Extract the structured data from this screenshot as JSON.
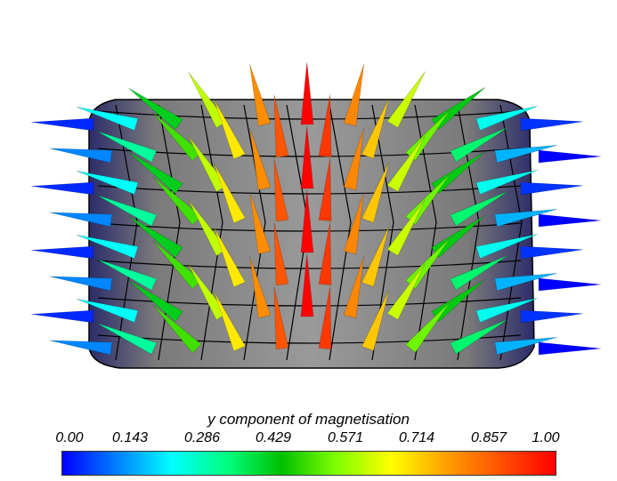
{
  "colorbar": {
    "title": "y component of magnetisation",
    "ticks": [
      "0.00",
      "0.143",
      "0.286",
      "0.429",
      "0.571",
      "0.714",
      "0.857",
      "1.00"
    ],
    "range": [
      0,
      1
    ],
    "colormap": [
      "#0000ff",
      "#0080ff",
      "#00ffff",
      "#00ff80",
      "#00c000",
      "#80ff00",
      "#ffff00",
      "#ffa000",
      "#ff5000",
      "#ff0000"
    ]
  },
  "scene": {
    "background": "#ffffff",
    "mesh_fill": "#8c8c8c",
    "mesh_edge": "#000000",
    "glyph_type": "cone",
    "shape": "cylinder"
  }
}
